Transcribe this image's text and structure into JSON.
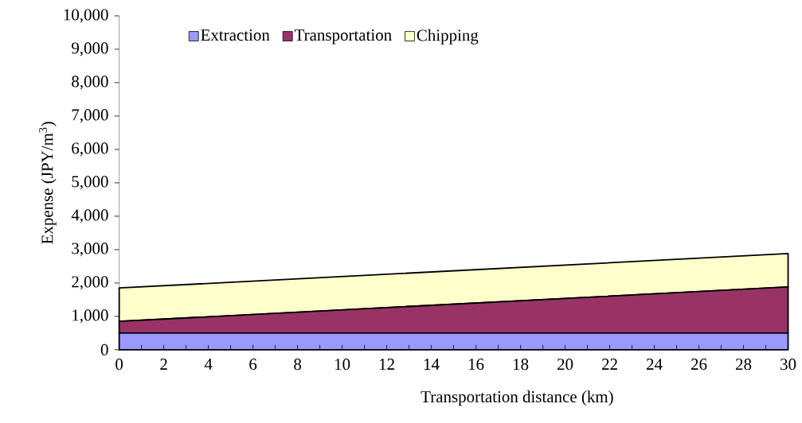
{
  "chart_data": {
    "type": "area",
    "stacked": true,
    "xlabel": "Transportation distance (km)",
    "ylabel": "Expense (JPY/m$^{3}$)",
    "x": [
      0,
      30
    ],
    "series": [
      {
        "name": "Extraction",
        "color": "#9999ff",
        "values": [
          500,
          500
        ]
      },
      {
        "name": "Transportation",
        "color": "#993366",
        "values": [
          350,
          1380
        ]
      },
      {
        "name": "Chipping",
        "color": "#ffffcc",
        "values": [
          1000,
          1000
        ]
      }
    ],
    "xlim": [
      0,
      30
    ],
    "xticks": [
      0,
      {
        "value": 1,
        "label": null
      },
      2,
      {
        "value": 3,
        "label": null
      },
      4,
      {
        "value": 5,
        "label": null
      },
      6,
      {
        "value": 7,
        "label": null
      },
      8,
      {
        "value": 9,
        "label": null
      },
      10,
      {
        "value": 11,
        "label": null
      },
      12,
      {
        "value": 13,
        "label": null
      },
      14,
      {
        "value": 15,
        "label": null
      },
      16,
      {
        "value": 17,
        "label": null
      },
      18,
      {
        "value": 19,
        "label": null
      },
      20,
      {
        "value": 21,
        "label": null
      },
      22,
      {
        "value": 23,
        "label": null
      },
      24,
      {
        "value": 25,
        "label": null
      },
      26,
      {
        "value": 27,
        "label": null
      },
      28,
      {
        "value": 29,
        "label": null
      },
      30
    ],
    "ylim": [
      0,
      10000
    ],
    "yticks": [
      0,
      {
        "value": 1000,
        "label": "1,000"
      },
      {
        "value": 2000,
        "label": "2,000"
      },
      {
        "value": 3000,
        "label": "3,000"
      },
      {
        "value": 4000,
        "label": "4,000"
      },
      {
        "value": 5000,
        "label": "5,000"
      },
      {
        "value": 6000,
        "label": "6,000"
      },
      {
        "value": 7000,
        "label": "7,000"
      },
      {
        "value": 8000,
        "label": "8,000"
      },
      {
        "value": 9000,
        "label": "9,000"
      },
      {
        "value": 10000,
        "label": "10,000"
      }
    ],
    "grid": false,
    "legend": "top"
  }
}
